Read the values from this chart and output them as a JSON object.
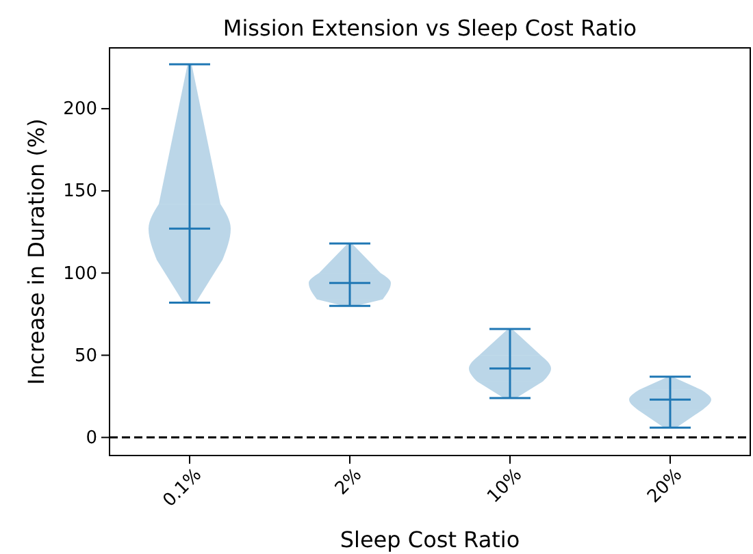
{
  "chart_data": {
    "type": "box",
    "title": "Mission Extension vs Sleep Cost Ratio",
    "xlabel": "Sleep Cost Ratio",
    "ylabel": "Increase in Duration (%)",
    "categories": [
      "0.1%",
      "2%",
      "10%",
      "20%"
    ],
    "color": "#1f77b4",
    "boxes": [
      {
        "low": 82,
        "q1": 108,
        "median": 127,
        "q3": 142,
        "high": 227
      },
      {
        "low": 80,
        "q1": 84,
        "median": 94,
        "q3": 100,
        "high": 118
      },
      {
        "low": 24,
        "q1": 34,
        "median": 42,
        "q3": 50,
        "high": 66
      },
      {
        "low": 6,
        "q1": 17,
        "median": 23,
        "q3": 29,
        "high": 37
      }
    ],
    "ylim": [
      -11,
      237
    ],
    "yticks": [
      0,
      50,
      100,
      150,
      200
    ],
    "ref_lines": [
      {
        "axis": "y",
        "value": 0,
        "color": "#000000",
        "line_style": "dashed"
      }
    ],
    "grid": false
  }
}
